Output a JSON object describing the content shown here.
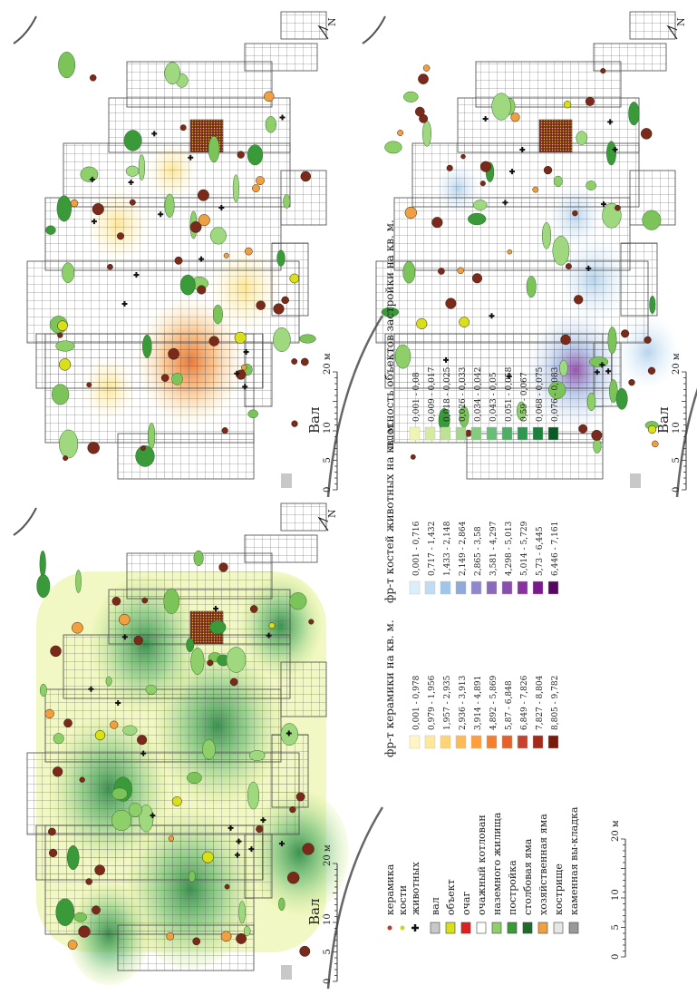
{
  "labels": {
    "rampart": "Вал",
    "scale_unit": "20 м",
    "scale_ticks": [
      "0",
      "5",
      "10",
      "20 м"
    ],
    "north": "N"
  },
  "legend_objects": {
    "finds": [
      {
        "id": "ceramics",
        "label": "керамика",
        "color": "#c0392b"
      },
      {
        "id": "bones",
        "label": "кости",
        "color": "#c9d61e"
      },
      {
        "id": "animals",
        "label": "животных",
        "color": "#111111"
      }
    ],
    "features": [
      {
        "id": "val",
        "label": "вал",
        "color": "#c8c8c8"
      },
      {
        "id": "object",
        "label": "объект",
        "color": "#d8e01a"
      },
      {
        "id": "hearth",
        "label": "очаг",
        "color": "#e02020"
      },
      {
        "id": "kiln",
        "label": "очажный котлован",
        "color": "#ffffff"
      },
      {
        "id": "dwelling",
        "label": "наземного жилища",
        "color": "#8fcf6a"
      },
      {
        "id": "building",
        "label": "постройка",
        "color": "#3a9a3a"
      },
      {
        "id": "post",
        "label": "столбовая яма",
        "color": "#1f6b2c"
      },
      {
        "id": "pit",
        "label": "хозяйственная яма",
        "color": "#f0a040"
      },
      {
        "id": "fire",
        "label": "кострище",
        "color": "#e6e6e6"
      },
      {
        "id": "stone",
        "label": "каменная вы-кладка",
        "color": "#999999"
      }
    ]
  },
  "legend_density": [
    {
      "title": "фр-т керамики на кв. м.",
      "classes": [
        "0,001 - 0,978",
        "0,979 - 1,956",
        "1,957 - 2,935",
        "2,936 - 3,913",
        "3,914 - 4,891",
        "4,892 - 5,869",
        "5,87 - 6,848",
        "6,849 - 7,826",
        "7,827 - 8,804",
        "8,805 - 9,782"
      ],
      "colors": [
        "#fff6c4",
        "#ffe89a",
        "#ffd275",
        "#ffb955",
        "#ff9e3d",
        "#f4802c",
        "#e6602a",
        "#c7422a",
        "#a52a1a",
        "#7a1a0a"
      ]
    },
    {
      "title": "фр-т костей животных на кв. м.",
      "classes": [
        "0,001 - 0,716",
        "0,717 - 1,432",
        "1,433 - 2,148",
        "2,149 - 2,864",
        "2,865 - 3,58",
        "3,581 - 4,297",
        "4,298 - 5,013",
        "5,014 - 5,729",
        "5,73 - 6,445",
        "6,446 - 7,161"
      ],
      "colors": [
        "#dceefa",
        "#bfdcf2",
        "#9fc6e8",
        "#8fa9dc",
        "#8f88cc",
        "#8a6abd",
        "#8a4fae",
        "#8a32a0",
        "#7a1a8f",
        "#55085f"
      ]
    },
    {
      "title": "плотность объектов застройки на кв. м.",
      "classes": [
        "0,001 - 0,08",
        "0,009 - 0,017",
        "0,018 - 0,025",
        "0,026 - 0,033",
        "0,034 - 0,042",
        "0,043 - 0,05",
        "0,051 - 0,058",
        "0,59 - 0,067",
        "0,068 - 0,075",
        "0,076 - 0,083"
      ],
      "colors": [
        "#eef5b0",
        "#d6eb9f",
        "#bfe195",
        "#a4d68b",
        "#86ca80",
        "#6abd74",
        "#4fae65",
        "#2f9850",
        "#1c7f3c",
        "#0a5a24"
      ]
    }
  ],
  "maps": [
    {
      "id": "map-ceramics",
      "heat": "ceramics"
    },
    {
      "id": "map-bones",
      "heat": "bones"
    },
    {
      "id": "map-features",
      "heat": "features"
    }
  ]
}
